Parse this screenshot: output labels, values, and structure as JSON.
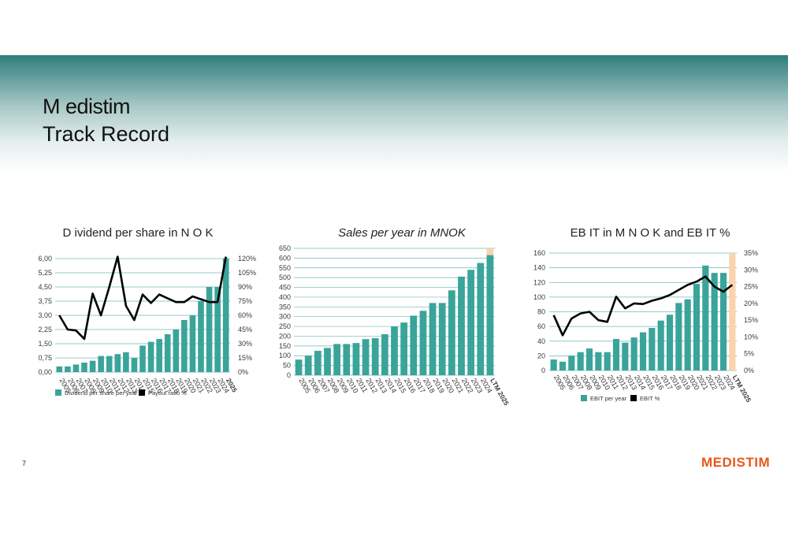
{
  "header": {
    "title_line1": "M edistim",
    "title_line2": "Track Record"
  },
  "footer": {
    "page_number": "7",
    "logo_text": "MEDISTIM",
    "logo_color": "#e8581c"
  },
  "colors": {
    "bar": "#3aa49a",
    "line": "#000000",
    "highlight": "#f9d4ad",
    "grid": "#3aa49a",
    "axis_text": "#3a3a3a"
  },
  "chart_data": [
    {
      "type": "bar",
      "title": "D ividend per share in N O K",
      "categories": [
        "2005",
        "2006",
        "2007",
        "2008",
        "2009",
        "2010",
        "2011",
        "2012",
        "2013",
        "2014",
        "2015",
        "2016",
        "2017",
        "2018",
        "2019",
        "2020",
        "2021",
        "2022",
        "2023",
        "2024",
        "2025"
      ],
      "series": [
        {
          "name": "Dividend per share per year",
          "type": "bar",
          "axis": "left",
          "values": [
            0.3,
            0.3,
            0.4,
            0.5,
            0.6,
            0.85,
            0.85,
            0.95,
            1.05,
            0.75,
            1.4,
            1.6,
            1.75,
            2.0,
            2.25,
            2.75,
            3.0,
            3.75,
            4.5,
            4.5,
            6.0
          ]
        },
        {
          "name": "Payout ratio %",
          "type": "line",
          "axis": "right",
          "values": [
            60,
            45,
            44,
            35,
            83,
            60,
            90,
            122,
            70,
            55,
            82,
            73,
            82,
            78,
            74,
            74,
            80,
            77,
            74,
            74,
            122
          ]
        }
      ],
      "highlight_category": "2025",
      "ylim": [
        0,
        6.0
      ],
      "yticks": [
        "0,00",
        "0,75",
        "1,50",
        "2,25",
        "3,00",
        "3,75",
        "4,50",
        "5,25",
        "6,00"
      ],
      "y2lim": [
        0,
        120
      ],
      "y2ticks": [
        "0%",
        "15%",
        "30%",
        "45%",
        "60%",
        "75%",
        "90%",
        "105%",
        "120%"
      ],
      "xlabels": [
        "2005",
        "2006",
        "2007",
        "2008",
        "2009",
        "2010",
        "2011",
        "2012",
        "2013",
        "2014",
        "2015",
        "2016",
        "2017",
        "2018",
        "2019",
        "2020",
        "2021",
        "2022",
        "2023",
        "2024",
        "2025"
      ],
      "legend": [
        "Dividend per share per year",
        "Payout ratio %"
      ]
    },
    {
      "type": "bar",
      "title": "Sales per year in MNOK",
      "categories": [
        "2005",
        "2006",
        "2007",
        "2008",
        "2009",
        "2010",
        "2011",
        "2012",
        "2013",
        "2014",
        "2015",
        "2016",
        "2017",
        "2018",
        "2019",
        "2020",
        "2021",
        "2022",
        "2023",
        "2024",
        "LTM 2025"
      ],
      "series": [
        {
          "type": "bar",
          "axis": "left",
          "values": [
            80,
            100,
            125,
            140,
            160,
            160,
            165,
            185,
            190,
            210,
            250,
            270,
            305,
            330,
            370,
            370,
            435,
            505,
            540,
            575,
            615
          ]
        }
      ],
      "highlight_category": "LTM 2025",
      "ylim": [
        0,
        650
      ],
      "yticks": [
        "0",
        "50",
        "100",
        "150",
        "200",
        "250",
        "300",
        "350",
        "400",
        "450",
        "500",
        "550",
        "600",
        "650"
      ],
      "xlabels": [
        "2005",
        "2006",
        "2007",
        "2008",
        "2009",
        "2010",
        "2011",
        "2012",
        "2013",
        "2014",
        "2015",
        "2016",
        "2017",
        "2018",
        "2019",
        "2020",
        "2021",
        "2022",
        "2023",
        "2024",
        "LTM 2025"
      ],
      "legend": []
    },
    {
      "type": "bar",
      "title": "EB IT in M N O K and EB IT %",
      "categories": [
        "2005",
        "2006",
        "2007",
        "2008",
        "2009",
        "2010",
        "2011",
        "2012",
        "2013",
        "2014",
        "2015",
        "2016",
        "2017",
        "2018",
        "2019",
        "2020",
        "2021",
        "2022",
        "2023",
        "2024",
        "LTM 2025"
      ],
      "series": [
        {
          "name": "EBIT per year",
          "type": "bar",
          "axis": "left",
          "values": [
            15,
            12,
            20,
            25,
            30,
            25,
            25,
            43,
            38,
            45,
            52,
            58,
            68,
            76,
            92,
            97,
            118,
            143,
            133,
            133,
            0
          ]
        },
        {
          "name": "EBIT %",
          "type": "line",
          "axis": "right",
          "values": [
            16.5,
            10.5,
            15.5,
            17.0,
            17.5,
            15.0,
            14.5,
            22.0,
            18.5,
            20.0,
            19.8,
            20.8,
            21.5,
            22.5,
            24.0,
            25.5,
            26.5,
            28.0,
            25.0,
            23.5,
            25.5
          ]
        }
      ],
      "highlight_category": "LTM 2025",
      "ylim": [
        0,
        160
      ],
      "yticks": [
        "0",
        "20",
        "40",
        "60",
        "80",
        "100",
        "120",
        "140",
        "160"
      ],
      "y2lim": [
        0,
        35
      ],
      "y2ticks": [
        "0%",
        "5%",
        "10%",
        "15%",
        "20%",
        "25%",
        "30%",
        "35%"
      ],
      "xlabels": [
        "2005",
        "2006",
        "2007",
        "2008",
        "2009",
        "2010",
        "2011",
        "2012",
        "2013",
        "2014",
        "2015",
        "2016",
        "2017",
        "2018",
        "2019",
        "2020",
        "2021",
        "2022",
        "2023",
        "2024",
        "LTM 2025"
      ],
      "legend": [
        "EBIT per year",
        "EBIT %"
      ]
    }
  ]
}
